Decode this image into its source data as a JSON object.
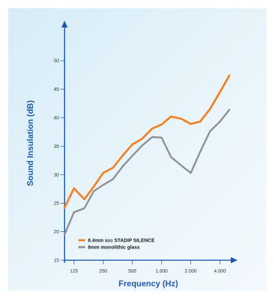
{
  "chart_data": {
    "type": "line",
    "xlabel": "Frequency (Hz)",
    "ylabel": "Sound Insulation (dB)",
    "xscale": "log",
    "xlim": [
      100,
      5000
    ],
    "ylim": [
      15,
      54
    ],
    "x_ticks": [
      {
        "value": 125,
        "label": "125"
      },
      {
        "value": 250,
        "label": "250"
      },
      {
        "value": 500,
        "label": "500"
      },
      {
        "value": 1000,
        "label": "1.000"
      },
      {
        "value": 2000,
        "label": "2.000"
      },
      {
        "value": 4000,
        "label": "4.000"
      }
    ],
    "y_ticks": [
      {
        "value": 15,
        "label": "15"
      },
      {
        "value": 20,
        "label": "20"
      },
      {
        "value": 25,
        "label": "25"
      },
      {
        "value": 30,
        "label": "30"
      },
      {
        "value": 35,
        "label": "35"
      },
      {
        "value": 40,
        "label": "40"
      },
      {
        "value": 45,
        "label": "45"
      },
      {
        "value": 50,
        "label": "50"
      }
    ],
    "x": [
      100,
      125,
      160,
      200,
      250,
      315,
      400,
      500,
      630,
      800,
      1000,
      1250,
      1600,
      2000,
      2500,
      3150,
      4000,
      5000
    ],
    "series": [
      {
        "name": "8.4mm",
        "name_small": "SGG",
        "name_rest": "STADIP SILENCE",
        "color": "#f0822a",
        "values": [
          24.2,
          27.6,
          25.7,
          27.9,
          30.3,
          31.2,
          33.4,
          35.3,
          36.3,
          38.1,
          38.8,
          40.2,
          39.8,
          38.9,
          39.3,
          41.5,
          44.5,
          47.4
        ]
      },
      {
        "name": "8mm monolithic glass",
        "color": "#8f9193",
        "values": [
          19.5,
          23.4,
          24.1,
          27.1,
          28.2,
          29.2,
          31.5,
          33.3,
          35.1,
          36.6,
          36.5,
          33.1,
          31.6,
          30.3,
          34.0,
          37.6,
          39.3,
          41.4
        ]
      }
    ],
    "legend_position": "bottom-left",
    "grid": false
  }
}
